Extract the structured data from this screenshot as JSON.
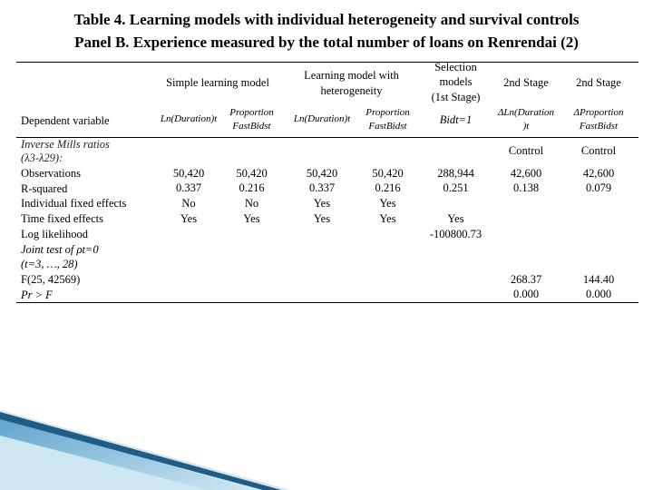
{
  "title": {
    "line1": "Table 4. Learning models with individual heterogeneity and survival controls",
    "line2": "Panel B. Experience measured by the total number of loans on Renrendai (2)"
  },
  "header": {
    "group1": "Simple learning model",
    "group2_line1": "Learning model with",
    "group2_line2": "heterogeneity",
    "selection_line1": "Selection",
    "selection_line2": "models",
    "selection_line3": "(1st Stage)",
    "stage2a": "2nd Stage",
    "stage2b": "2nd Stage"
  },
  "subheader": {
    "dep_var": "Dependent variable",
    "c1": "Ln(Duration)t",
    "c2_line1": "Proportion",
    "c2_line2": "FastBidst",
    "c3": "Ln(Duration)t",
    "c4_line1": "Proportion",
    "c4_line2": "FastBidst",
    "c5": "Bidt=1",
    "c6_line1": "ΔLn(Duration",
    "c6_line2": ")t",
    "c7_line1": "ΔProportion",
    "c7_line2": "FastBidst"
  },
  "imr": {
    "label_line1": "Inverse Mills ratios",
    "label_line2": "(λ3-λ29):",
    "c6": "Control",
    "c7": "Control"
  },
  "row_labels": [
    "Observations",
    "R-squared",
    "Individual fixed effects",
    "Time fixed effects",
    "Log likelihood",
    "Joint test of ρt=0",
    "(t=3, …, 28)",
    "F(25, 42569)",
    "Pr > F"
  ],
  "cols": {
    "c1": [
      "50,420",
      "0.337",
      "No",
      "Yes"
    ],
    "c2": [
      "50,420",
      "0.216",
      "No",
      "Yes"
    ],
    "c3": [
      "50,420",
      "0.337",
      "Yes",
      "Yes"
    ],
    "c4": [
      "50,420",
      "0.216",
      "Yes",
      "Yes"
    ],
    "c5": [
      "288,944",
      "0.251",
      "Yes",
      "-100800.73"
    ],
    "c6": [
      "42,600",
      "0.138",
      "268.37",
      "0.000"
    ],
    "c7": [
      "42,600",
      "0.079",
      "144.40",
      "0.000"
    ]
  },
  "colors": {
    "ribbon_light": "#cfe6f3",
    "ribbon_dark": "#1f5d86",
    "ribbon_mid": "#5fa3cc"
  }
}
